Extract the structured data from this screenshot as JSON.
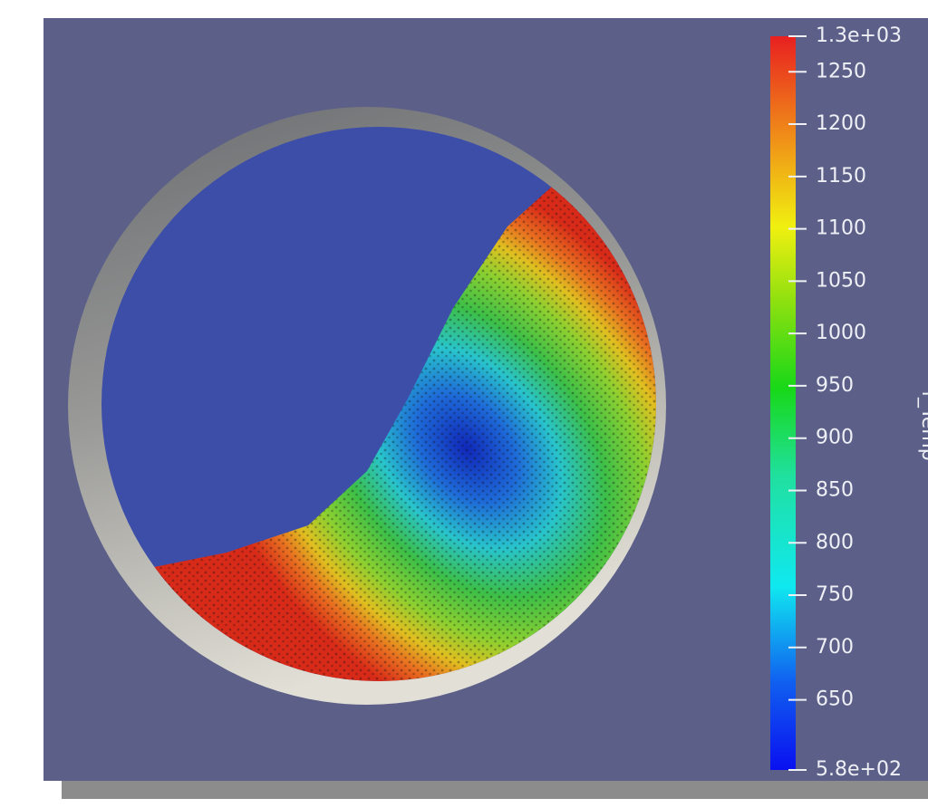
{
  "colorbar": {
    "title": "f_Temp",
    "range": [
      {
        "value": 583,
        "label": "5.8e+02"
      },
      {
        "value": 1284,
        "label": "1.3e+03"
      }
    ],
    "ticks": [
      650,
      700,
      750,
      800,
      850,
      900,
      950,
      1000,
      1050,
      1100,
      1150,
      1200,
      1250
    ]
  }
}
